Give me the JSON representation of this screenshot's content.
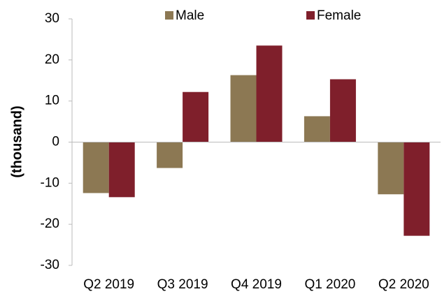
{
  "chart_data": {
    "type": "bar",
    "y_label": "(thousand)",
    "categories": [
      "Q2 2019",
      "Q3 2019",
      "Q4 2019",
      "Q1 2020",
      "Q2 2020"
    ],
    "series": [
      {
        "name": "Male",
        "color": "#8c7853",
        "values": [
          -12.4,
          -6.3,
          16.3,
          6.3,
          -12.7
        ]
      },
      {
        "name": "Female",
        "color": "#7f1f2b",
        "values": [
          -13.4,
          12.2,
          23.5,
          15.3,
          -22.8
        ]
      }
    ],
    "ylim": [
      -30,
      30
    ],
    "yticks": [
      -30,
      -20,
      -10,
      0,
      10,
      20,
      30
    ],
    "legend": "top"
  }
}
